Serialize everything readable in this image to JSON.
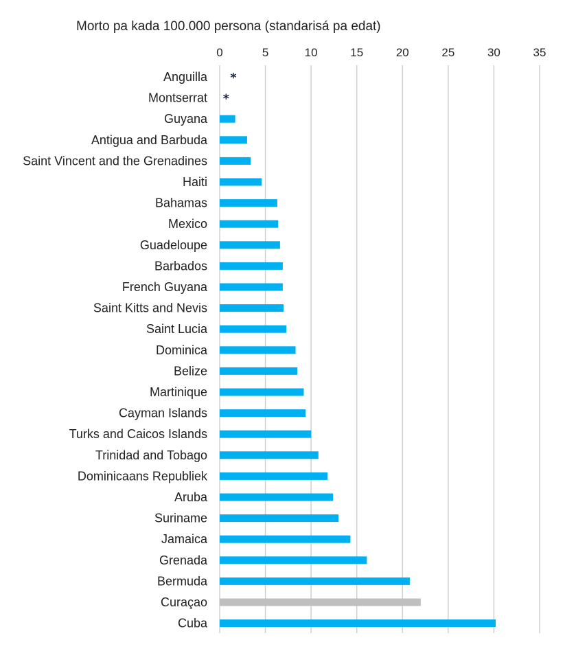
{
  "chart_data": {
    "type": "bar",
    "orientation": "horizontal",
    "title": "Morto pa kada 100.000 persona (standarisá pa edat)",
    "x_axis_position": "top",
    "xlim": [
      0,
      35
    ],
    "xticks": [
      0,
      5,
      10,
      15,
      20,
      25,
      30,
      35
    ],
    "grid": true,
    "bar_color": "#00B0F0",
    "highlight_color": "#BFBFBF",
    "marker_color": "#1A2A4A",
    "categories": [
      "Anguilla",
      "Montserrat",
      "Guyana",
      "Antigua and Barbuda",
      "Saint Vincent and the Grenadines",
      "Haiti",
      "Bahamas",
      "Mexico",
      "Guadeloupe",
      "Barbados",
      "French Guyana",
      "Saint Kitts and Nevis",
      "Saint Lucia",
      "Dominica",
      "Belize",
      "Martinique",
      "Cayman Islands",
      "Turks and Caicos Islands",
      "Trinidad and Tobago",
      "Dominicaans Republiek",
      "Aruba",
      "Suriname",
      "Jamaica",
      "Grenada",
      "Bermuda",
      "Curaçao",
      "Cuba"
    ],
    "values": [
      null,
      null,
      1.7,
      3.0,
      3.4,
      4.6,
      6.3,
      6.4,
      6.6,
      6.9,
      6.9,
      7.0,
      7.3,
      8.3,
      8.5,
      9.2,
      9.4,
      10.0,
      10.8,
      11.8,
      12.4,
      13.0,
      14.3,
      16.1,
      20.8,
      22.0,
      30.2
    ],
    "highlight": [
      false,
      false,
      false,
      false,
      false,
      false,
      false,
      false,
      false,
      false,
      false,
      false,
      false,
      false,
      false,
      false,
      false,
      false,
      false,
      false,
      false,
      false,
      false,
      false,
      false,
      true,
      false
    ],
    "markers": [
      {
        "category": "Anguilla",
        "symbol": "*",
        "x": 1.5
      },
      {
        "category": "Montserrat",
        "symbol": "*",
        "x": 0.7
      }
    ]
  }
}
